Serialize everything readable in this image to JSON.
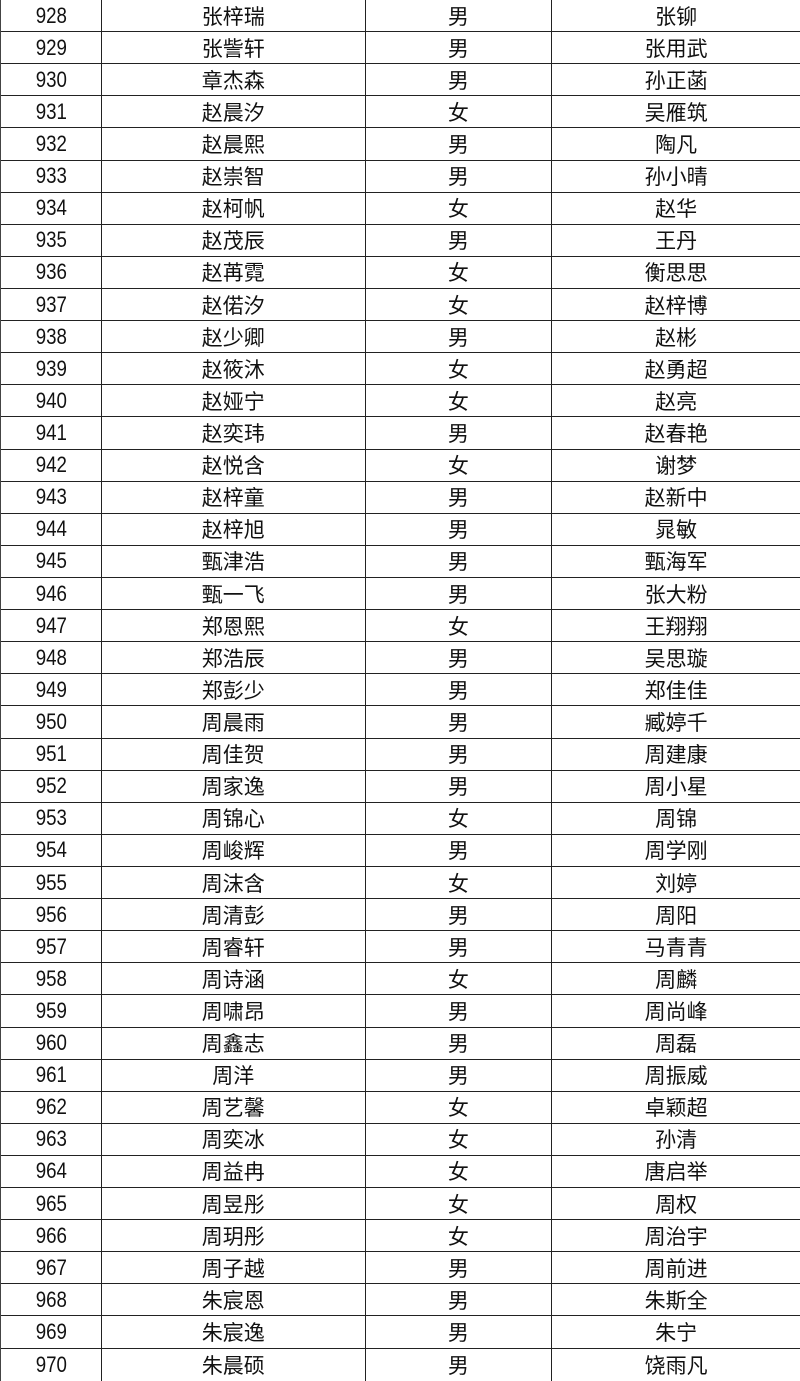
{
  "table": {
    "rows": [
      [
        "928",
        "张梓瑞",
        "男",
        "张铆"
      ],
      [
        "929",
        "张訾轩",
        "男",
        "张用武"
      ],
      [
        "930",
        "章杰森",
        "男",
        "孙正菡"
      ],
      [
        "931",
        "赵晨汐",
        "女",
        "吴雁筑"
      ],
      [
        "932",
        "赵晨熙",
        "男",
        "陶凡"
      ],
      [
        "933",
        "赵崇智",
        "男",
        "孙小晴"
      ],
      [
        "934",
        "赵柯帆",
        "女",
        "赵华"
      ],
      [
        "935",
        "赵茂辰",
        "男",
        "王丹"
      ],
      [
        "936",
        "赵苒霓",
        "女",
        "衡思思"
      ],
      [
        "937",
        "赵偌汐",
        "女",
        "赵梓博"
      ],
      [
        "938",
        "赵少卿",
        "男",
        "赵彬"
      ],
      [
        "939",
        "赵筱沐",
        "女",
        "赵勇超"
      ],
      [
        "940",
        "赵娅宁",
        "女",
        "赵亮"
      ],
      [
        "941",
        "赵奕玮",
        "男",
        "赵春艳"
      ],
      [
        "942",
        "赵悦含",
        "女",
        "谢梦"
      ],
      [
        "943",
        "赵梓童",
        "男",
        "赵新中"
      ],
      [
        "944",
        "赵梓旭",
        "男",
        "晁敏"
      ],
      [
        "945",
        "甄津浩",
        "男",
        "甄海军"
      ],
      [
        "946",
        "甄一飞",
        "男",
        "张大粉"
      ],
      [
        "947",
        "郑恩熙",
        "女",
        "王翔翔"
      ],
      [
        "948",
        "郑浩辰",
        "男",
        "吴思璇"
      ],
      [
        "949",
        "郑彭少",
        "男",
        "郑佳佳"
      ],
      [
        "950",
        "周晨雨",
        "男",
        "臧婷千"
      ],
      [
        "951",
        "周佳贺",
        "男",
        "周建康"
      ],
      [
        "952",
        "周家逸",
        "男",
        "周小星"
      ],
      [
        "953",
        "周锦心",
        "女",
        "周锦"
      ],
      [
        "954",
        "周峻辉",
        "男",
        "周学刚"
      ],
      [
        "955",
        "周沫含",
        "女",
        "刘婷"
      ],
      [
        "956",
        "周清彭",
        "男",
        "周阳"
      ],
      [
        "957",
        "周睿轩",
        "男",
        "马青青"
      ],
      [
        "958",
        "周诗涵",
        "女",
        "周麟"
      ],
      [
        "959",
        "周啸昂",
        "男",
        "周尚峰"
      ],
      [
        "960",
        "周鑫志",
        "男",
        "周磊"
      ],
      [
        "961",
        "周洋",
        "男",
        "周振威"
      ],
      [
        "962",
        "周艺馨",
        "女",
        "卓颖超"
      ],
      [
        "963",
        "周奕冰",
        "女",
        "孙清"
      ],
      [
        "964",
        "周益冉",
        "女",
        "唐启举"
      ],
      [
        "965",
        "周昱彤",
        "女",
        "周权"
      ],
      [
        "966",
        "周玥彤",
        "女",
        "周治宇"
      ],
      [
        "967",
        "周子越",
        "男",
        "周前进"
      ],
      [
        "968",
        "朱宸恩",
        "男",
        "朱斯全"
      ],
      [
        "969",
        "朱宸逸",
        "男",
        "朱宁"
      ],
      [
        "970",
        "朱晨硕",
        "男",
        "饶雨凡"
      ]
    ]
  }
}
